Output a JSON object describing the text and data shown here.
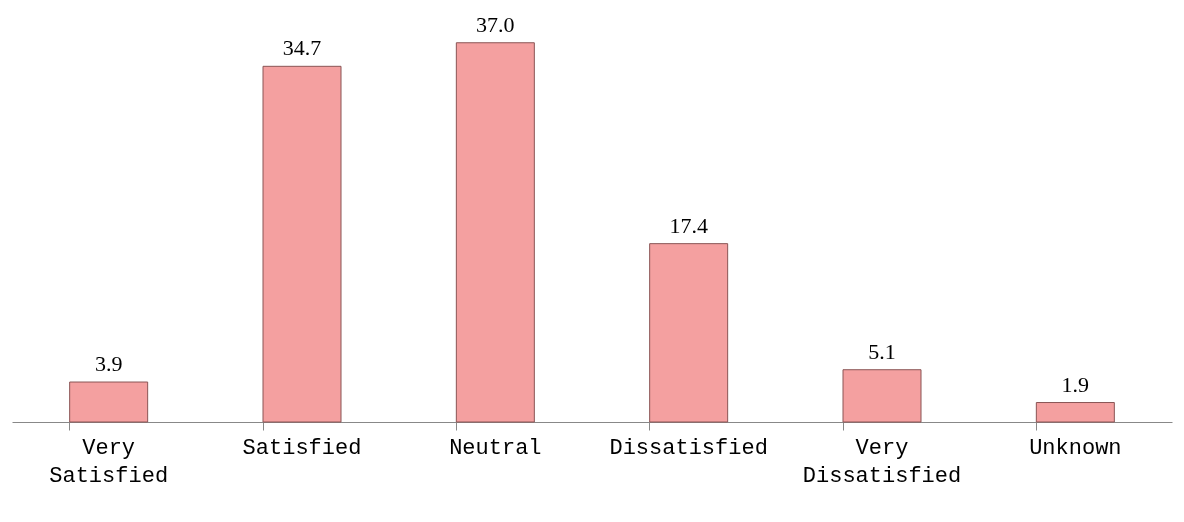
{
  "chart_data": {
    "type": "bar",
    "categories": [
      "Very Satisfied",
      "Satisfied",
      "Neutral",
      "Dissatisfied",
      "Very Dissatisfied",
      "Unknown"
    ],
    "values": [
      3.9,
      34.7,
      37.0,
      17.4,
      5.1,
      1.9
    ],
    "value_labels": [
      "3.9",
      "34.7",
      "37.0",
      "17.4",
      "5.1",
      "1.9"
    ],
    "color": "#f4a0a0",
    "grid": false
  }
}
